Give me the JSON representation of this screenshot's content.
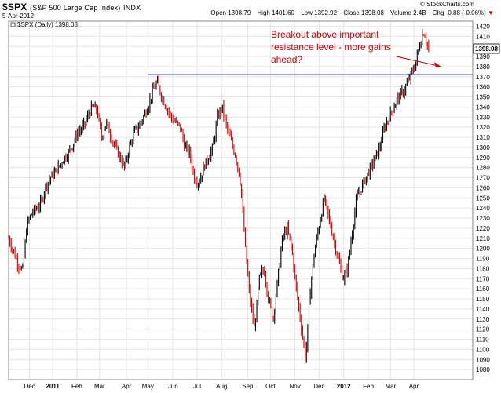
{
  "header": {
    "symbol": "$SPX",
    "description": "(S&P 500 Large Cap Index)",
    "exchange": "INDX",
    "date": "5-Apr-2012",
    "open_label": "Open",
    "open": "1398.79",
    "high_label": "High",
    "high": "1401.60",
    "low_label": "Low",
    "low": "1392.92",
    "close_label": "Close",
    "close": "1398.08",
    "volume_label": "Volume",
    "volume": "2.4B",
    "chg_label": "Chg",
    "chg": "-0.88 (-0.06%)",
    "chg_arrow": "▼",
    "brand": "© StockCharts.com"
  },
  "chart_data": {
    "type": "line",
    "legend": "$SPX (Daily) 1398.08",
    "last_value_label": "1398.08",
    "ylim": [
      1070,
      1425
    ],
    "y_ticks": [
      1080,
      1090,
      1100,
      1110,
      1120,
      1130,
      1140,
      1150,
      1160,
      1170,
      1180,
      1190,
      1200,
      1210,
      1220,
      1230,
      1240,
      1250,
      1260,
      1270,
      1280,
      1290,
      1300,
      1310,
      1320,
      1330,
      1340,
      1350,
      1360,
      1370,
      1380,
      1390,
      1400,
      1410,
      1420
    ],
    "x_labels": [
      {
        "label": "Dec",
        "t": 0.045
      },
      {
        "label": "2011",
        "t": 0.095,
        "bold": true
      },
      {
        "label": "Feb",
        "t": 0.147
      },
      {
        "label": "Mar",
        "t": 0.196
      },
      {
        "label": "Apr",
        "t": 0.254
      },
      {
        "label": "May",
        "t": 0.3
      },
      {
        "label": "Jun",
        "t": 0.354
      },
      {
        "label": "Jul",
        "t": 0.406
      },
      {
        "label": "Aug",
        "t": 0.459
      },
      {
        "label": "Sep",
        "t": 0.515
      },
      {
        "label": "Oct",
        "t": 0.564
      },
      {
        "label": "Nov",
        "t": 0.617
      },
      {
        "label": "Dec",
        "t": 0.669
      },
      {
        "label": "2012",
        "t": 0.722,
        "bold": true
      },
      {
        "label": "Feb",
        "t": 0.775
      },
      {
        "label": "Mar",
        "t": 0.823
      },
      {
        "label": "Apr",
        "t": 0.873
      }
    ],
    "series": [
      {
        "x": [
          0.0,
          0.012,
          0.02,
          0.03,
          0.04,
          0.05,
          0.06,
          0.07,
          0.08,
          0.09,
          0.1,
          0.11,
          0.12,
          0.13,
          0.14,
          0.15,
          0.16,
          0.17,
          0.18,
          0.19,
          0.2,
          0.21,
          0.22,
          0.23,
          0.24,
          0.25,
          0.26,
          0.27,
          0.28,
          0.29,
          0.3,
          0.31,
          0.32,
          0.33,
          0.34,
          0.35,
          0.36,
          0.37,
          0.38,
          0.39,
          0.4,
          0.41,
          0.42,
          0.43,
          0.44,
          0.45,
          0.46,
          0.47,
          0.48,
          0.49,
          0.5,
          0.51,
          0.52,
          0.53,
          0.54,
          0.55,
          0.56,
          0.57,
          0.58,
          0.59,
          0.6,
          0.61,
          0.62,
          0.63,
          0.64,
          0.65,
          0.66,
          0.67,
          0.68,
          0.69,
          0.7,
          0.71,
          0.72,
          0.73,
          0.74,
          0.75,
          0.76,
          0.77,
          0.78,
          0.79,
          0.8,
          0.81,
          0.82,
          0.83,
          0.84,
          0.85,
          0.86,
          0.87,
          0.875,
          0.885,
          0.89,
          0.895,
          0.9,
          0.905
        ],
        "values": [
          1210,
          1195,
          1185,
          1178,
          1225,
          1235,
          1240,
          1245,
          1262,
          1270,
          1275,
          1282,
          1290,
          1295,
          1305,
          1315,
          1320,
          1330,
          1340,
          1338,
          1310,
          1325,
          1312,
          1300,
          1290,
          1280,
          1300,
          1315,
          1320,
          1330,
          1340,
          1355,
          1365,
          1350,
          1340,
          1330,
          1325,
          1320,
          1300,
          1295,
          1270,
          1265,
          1280,
          1290,
          1300,
          1330,
          1340,
          1320,
          1305,
          1290,
          1265,
          1200,
          1150,
          1120,
          1170,
          1180,
          1150,
          1130,
          1170,
          1210,
          1220,
          1200,
          1160,
          1125,
          1090,
          1160,
          1200,
          1225,
          1250,
          1230,
          1210,
          1190,
          1170,
          1180,
          1215,
          1250,
          1260,
          1270,
          1280,
          1290,
          1300,
          1320,
          1330,
          1340,
          1350,
          1355,
          1365,
          1375,
          1380,
          1400,
          1410,
          1415,
          1405,
          1398
        ]
      }
    ],
    "resistance": 1372,
    "resistance_color": "#0000cc",
    "up_color": "#000000",
    "down_color": "#cc0000",
    "annotation": {
      "text_lines": [
        "Breakout above important",
        "resistance level - more gains",
        "ahead?"
      ],
      "color": "#cc0000"
    },
    "grid": true,
    "legend_position": "top-left"
  }
}
